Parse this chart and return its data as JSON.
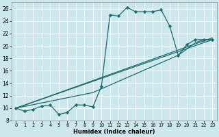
{
  "xlabel": "Humidex (Indice chaleur)",
  "ylabel": "",
  "xlim": [
    -0.5,
    23.5
  ],
  "ylim": [
    8,
    27
  ],
  "yticks": [
    8,
    10,
    12,
    14,
    16,
    18,
    20,
    22,
    24,
    26
  ],
  "xticks": [
    0,
    1,
    2,
    3,
    4,
    5,
    6,
    7,
    8,
    9,
    10,
    11,
    12,
    13,
    14,
    15,
    16,
    17,
    18,
    19,
    20,
    21,
    22,
    23
  ],
  "bg_color": "#cde8ec",
  "line_color": "#1a6b6b",
  "series": [
    {
      "x": [
        0,
        1,
        2,
        3,
        4,
        5,
        6,
        7,
        8,
        9,
        10,
        11,
        12,
        13,
        14,
        15,
        16,
        17,
        18,
        19,
        20,
        21,
        22,
        23
      ],
      "y": [
        10,
        9.5,
        9.8,
        10.3,
        10.5,
        9.0,
        9.3,
        10.5,
        10.5,
        10.2,
        13.5,
        25.0,
        24.8,
        26.2,
        25.5,
        25.5,
        25.5,
        25.8,
        23.2,
        18.5,
        20.2,
        21.0,
        21.0,
        21.0
      ],
      "marker": "D",
      "markersize": 2.2,
      "linewidth": 0.9
    },
    {
      "x": [
        0,
        23
      ],
      "y": [
        10,
        21.0
      ],
      "marker": null,
      "linewidth": 0.9
    },
    {
      "x": [
        0,
        23
      ],
      "y": [
        10,
        21.3
      ],
      "marker": null,
      "linewidth": 0.9
    },
    {
      "x": [
        0,
        9,
        19,
        21,
        22,
        23
      ],
      "y": [
        10,
        12.5,
        18.5,
        20.5,
        21.0,
        21.0
      ],
      "marker": null,
      "linewidth": 0.9
    }
  ]
}
